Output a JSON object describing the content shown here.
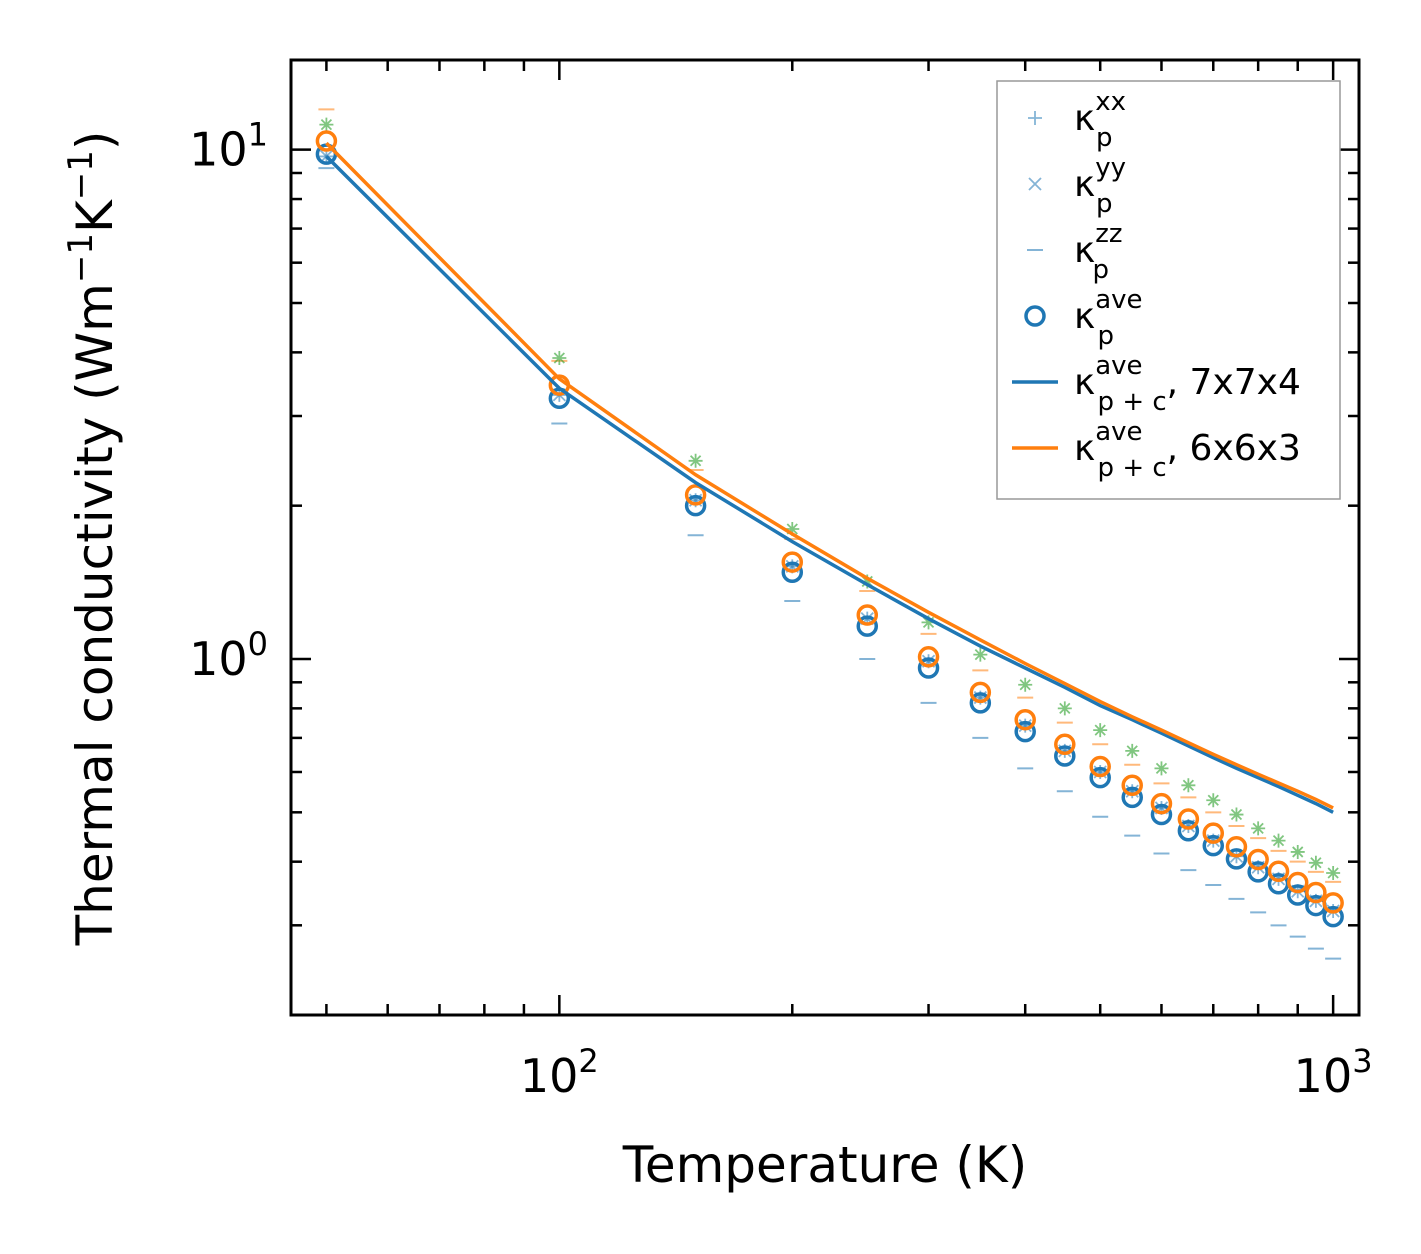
{
  "chart_data": {
    "type": "scatter",
    "xscale": "log",
    "yscale": "log",
    "xlim": [
      45,
      1080
    ],
    "ylim": [
      0.2,
      15
    ],
    "xlabel": "Temperature (K)",
    "ylabel": {
      "base": "Thermal conductivity (Wm",
      "exp1": "−1",
      "mid": "K",
      "exp2": "−1",
      "end": ")"
    },
    "x_ticks": [
      {
        "base": "10",
        "exp": "2",
        "value": 100
      },
      {
        "base": "10",
        "exp": "3",
        "value": 1000
      }
    ],
    "y_ticks": [
      {
        "base": "10",
        "exp": "0",
        "value": 1
      },
      {
        "base": "10",
        "exp": "1",
        "value": 10
      }
    ],
    "x": [
      50,
      100,
      150,
      200,
      250,
      300,
      350,
      400,
      450,
      500,
      550,
      600,
      650,
      700,
      750,
      800,
      850,
      900,
      950,
      1000
    ],
    "series": [
      {
        "name": "kappa_p_xx",
        "kind": "marker",
        "marker": "plus",
        "color": "#1f77b4",
        "values": [
          9.7,
          3.3,
          2.05,
          1.52,
          1.2,
          0.99,
          0.84,
          0.74,
          0.66,
          0.6,
          0.55,
          0.51,
          0.47,
          0.44,
          0.41,
          0.39,
          0.37,
          0.35,
          0.335,
          0.32
        ]
      },
      {
        "name": "kappa_p_yy",
        "kind": "marker",
        "marker": "x",
        "color": "#1f77b4",
        "values": [
          9.7,
          3.3,
          2.05,
          1.52,
          1.2,
          0.99,
          0.84,
          0.74,
          0.66,
          0.6,
          0.55,
          0.51,
          0.47,
          0.44,
          0.41,
          0.39,
          0.37,
          0.35,
          0.335,
          0.32
        ]
      },
      {
        "name": "kappa_p_zz",
        "kind": "marker",
        "marker": "dash",
        "color": "#1f77b4",
        "values": [
          9.2,
          2.9,
          1.75,
          1.3,
          1.0,
          0.82,
          0.7,
          0.61,
          0.55,
          0.49,
          0.45,
          0.415,
          0.385,
          0.36,
          0.338,
          0.318,
          0.3,
          0.285,
          0.27,
          0.258
        ]
      },
      {
        "name": "kappa_p_ave",
        "kind": "marker",
        "marker": "circle",
        "color": "#1f77b4",
        "values": [
          9.8,
          3.25,
          2.0,
          1.48,
          1.16,
          0.96,
          0.82,
          0.72,
          0.645,
          0.585,
          0.535,
          0.495,
          0.46,
          0.43,
          0.405,
          0.382,
          0.362,
          0.344,
          0.328,
          0.312
        ]
      },
      {
        "name": "kappa_p_ave_orange",
        "kind": "marker",
        "marker": "circle",
        "color": "#ff7f0e",
        "values": [
          10.4,
          3.45,
          2.1,
          1.55,
          1.22,
          1.01,
          0.86,
          0.76,
          0.68,
          0.615,
          0.565,
          0.52,
          0.485,
          0.455,
          0.428,
          0.404,
          0.383,
          0.364,
          0.348,
          0.332
        ]
      },
      {
        "name": "kappa_orange_upper",
        "kind": "marker",
        "marker": "dash",
        "color": "#ff7f0e",
        "values": [
          12.0,
          3.85,
          2.35,
          1.72,
          1.36,
          1.12,
          0.95,
          0.84,
          0.75,
          0.68,
          0.62,
          0.57,
          0.535,
          0.5,
          0.47,
          0.445,
          0.42,
          0.4,
          0.382,
          0.365
        ]
      },
      {
        "name": "kappa_green_star",
        "kind": "marker",
        "marker": "star",
        "color": "#2ca02c",
        "values": [
          11.2,
          3.9,
          2.45,
          1.8,
          1.42,
          1.18,
          1.02,
          0.89,
          0.8,
          0.725,
          0.66,
          0.61,
          0.565,
          0.528,
          0.495,
          0.465,
          0.44,
          0.418,
          0.398,
          0.38
        ]
      },
      {
        "name": "kappa_pc_ave_7x7x4",
        "kind": "line",
        "color": "#1f77b4",
        "values": [
          9.7,
          3.4,
          2.22,
          1.7,
          1.4,
          1.2,
          1.06,
          0.96,
          0.88,
          0.81,
          0.76,
          0.715,
          0.675,
          0.64,
          0.61,
          0.585,
          0.562,
          0.54,
          0.52,
          0.5
        ]
      },
      {
        "name": "kappa_pc_ave_6x6x3",
        "kind": "line",
        "color": "#ff7f0e",
        "values": [
          10.3,
          3.55,
          2.3,
          1.76,
          1.44,
          1.235,
          1.09,
          0.98,
          0.895,
          0.825,
          0.77,
          0.725,
          0.685,
          0.65,
          0.62,
          0.594,
          0.571,
          0.55,
          0.53,
          0.51
        ]
      }
    ],
    "legend": {
      "position": "top-right",
      "entries": [
        {
          "marker": "plus",
          "color": "#1f77b4",
          "symbol": "κ",
          "sup": "xx",
          "sub": "p",
          "suffix": ""
        },
        {
          "marker": "x",
          "color": "#1f77b4",
          "symbol": "κ",
          "sup": "yy",
          "sub": "p",
          "suffix": ""
        },
        {
          "marker": "dash",
          "color": "#1f77b4",
          "symbol": "κ",
          "sup": "zz",
          "sub": "p",
          "suffix": ""
        },
        {
          "marker": "circle",
          "color": "#1f77b4",
          "symbol": "κ",
          "sup": "ave",
          "sub": "p",
          "suffix": ""
        },
        {
          "marker": "line",
          "color": "#1f77b4",
          "symbol": "κ",
          "sup": "ave",
          "sub": "p + c",
          "suffix": ", 7x7x4"
        },
        {
          "marker": "line",
          "color": "#ff7f0e",
          "symbol": "κ",
          "sup": "ave",
          "sub": "p + c",
          "suffix": ", 6x6x3"
        }
      ]
    }
  }
}
